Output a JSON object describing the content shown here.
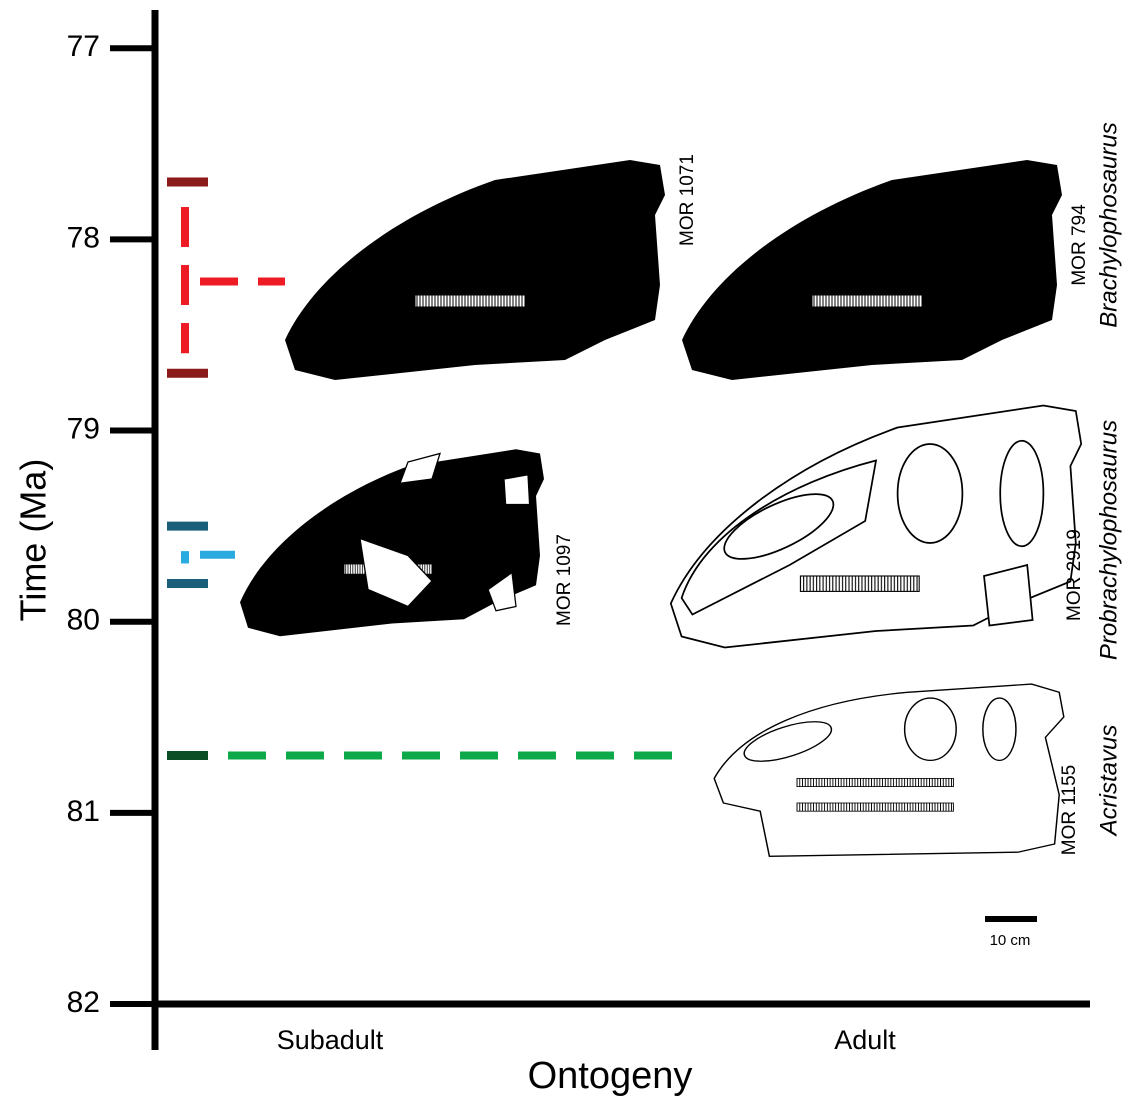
{
  "chart_data": {
    "type": "timeline",
    "ylabel": "Time (Ma)",
    "xlabel": "Ontogeny",
    "categories": [
      "Subadult",
      "Adult"
    ],
    "ylim": [
      76.8,
      82
    ],
    "yticks": [
      77,
      78,
      79,
      80,
      81,
      82
    ],
    "y_inverted": true,
    "series": [
      {
        "name": "Brachylophosaurus",
        "color": "#ed1c24",
        "range_color": "#8b1a1a",
        "start": 77.7,
        "end": 78.7,
        "mid": 78.22,
        "specimens": [
          "MOR 1071",
          "MOR 794"
        ]
      },
      {
        "name": "Probrachylophosaurus",
        "color": "#29abe2",
        "range_color": "#1b5e7a",
        "start": 79.5,
        "end": 79.8,
        "mid": 79.65,
        "specimens": [
          "MOR 1097",
          "MOR 2919"
        ]
      },
      {
        "name": "Acristavus",
        "color": "#0ca84a",
        "range_color": "#0b4d24",
        "start": 80.7,
        "specimens": [
          "MOR 1155"
        ]
      }
    ],
    "scale_bar": "10 cm"
  }
}
